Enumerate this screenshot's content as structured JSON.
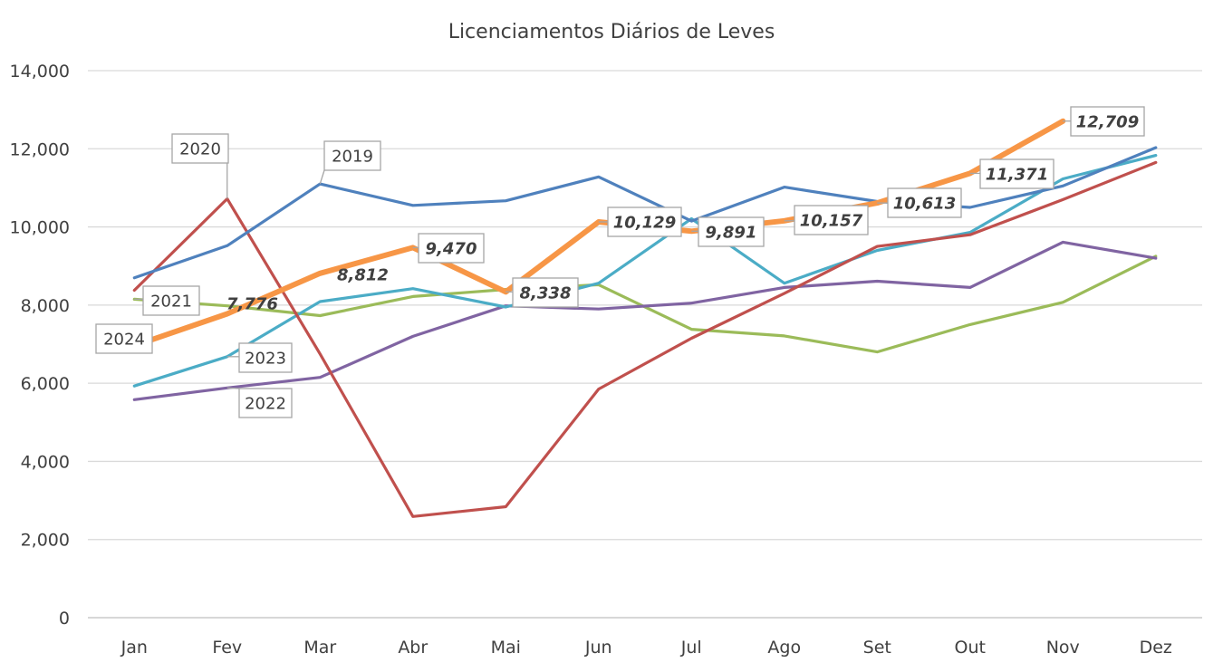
{
  "chart_data": {
    "type": "line",
    "title": "Licenciamentos Diários de Leves",
    "xlabel": "",
    "ylabel": "",
    "categories": [
      "Jan",
      "Fev",
      "Mar",
      "Abr",
      "Mai",
      "Jun",
      "Jul",
      "Ago",
      "Set",
      "Out",
      "Nov",
      "Dez"
    ],
    "ylim": [
      0,
      14000
    ],
    "yticks": [
      0,
      2000,
      4000,
      6000,
      8000,
      10000,
      12000,
      14000
    ],
    "ytick_labels": [
      "0",
      "2,000",
      "4,000",
      "6,000",
      "8,000",
      "10,000",
      "12,000",
      "14,000"
    ],
    "grid": true,
    "legend": "none",
    "series": [
      {
        "name": "2019",
        "color": "#4f81bd",
        "values": [
          8700,
          9520,
          11100,
          10550,
          10670,
          11280,
          10150,
          11020,
          10650,
          10500,
          11050,
          12030
        ]
      },
      {
        "name": "2020",
        "color": "#c0504d",
        "values": [
          8380,
          10720,
          6750,
          2590,
          2840,
          5850,
          7150,
          8300,
          9500,
          9800,
          10700,
          11650
        ]
      },
      {
        "name": "2021",
        "color": "#9bbb59",
        "values": [
          8150,
          7980,
          7730,
          8220,
          8400,
          8520,
          7380,
          7210,
          6800,
          7500,
          8070,
          9250
        ]
      },
      {
        "name": "2022",
        "color": "#8064a2",
        "values": [
          5580,
          5880,
          6150,
          7200,
          7980,
          7900,
          8050,
          8450,
          8610,
          8450,
          9610,
          9200
        ]
      },
      {
        "name": "2023",
        "color": "#4bacc6",
        "values": [
          5930,
          6680,
          8090,
          8420,
          7950,
          8560,
          10210,
          8560,
          9400,
          9860,
          11230,
          11830
        ]
      },
      {
        "name": "2024",
        "color": "#f79646",
        "values": [
          6960,
          7776,
          8812,
          9470,
          8338,
          10129,
          9891,
          10157,
          10613,
          11371,
          12709,
          null
        ]
      }
    ],
    "data_labels": [
      "7,776",
      "8,812",
      "9,470",
      "8,338",
      "10,129",
      "9,891",
      "10,157",
      "10,613",
      "11,371",
      "12,709"
    ]
  }
}
